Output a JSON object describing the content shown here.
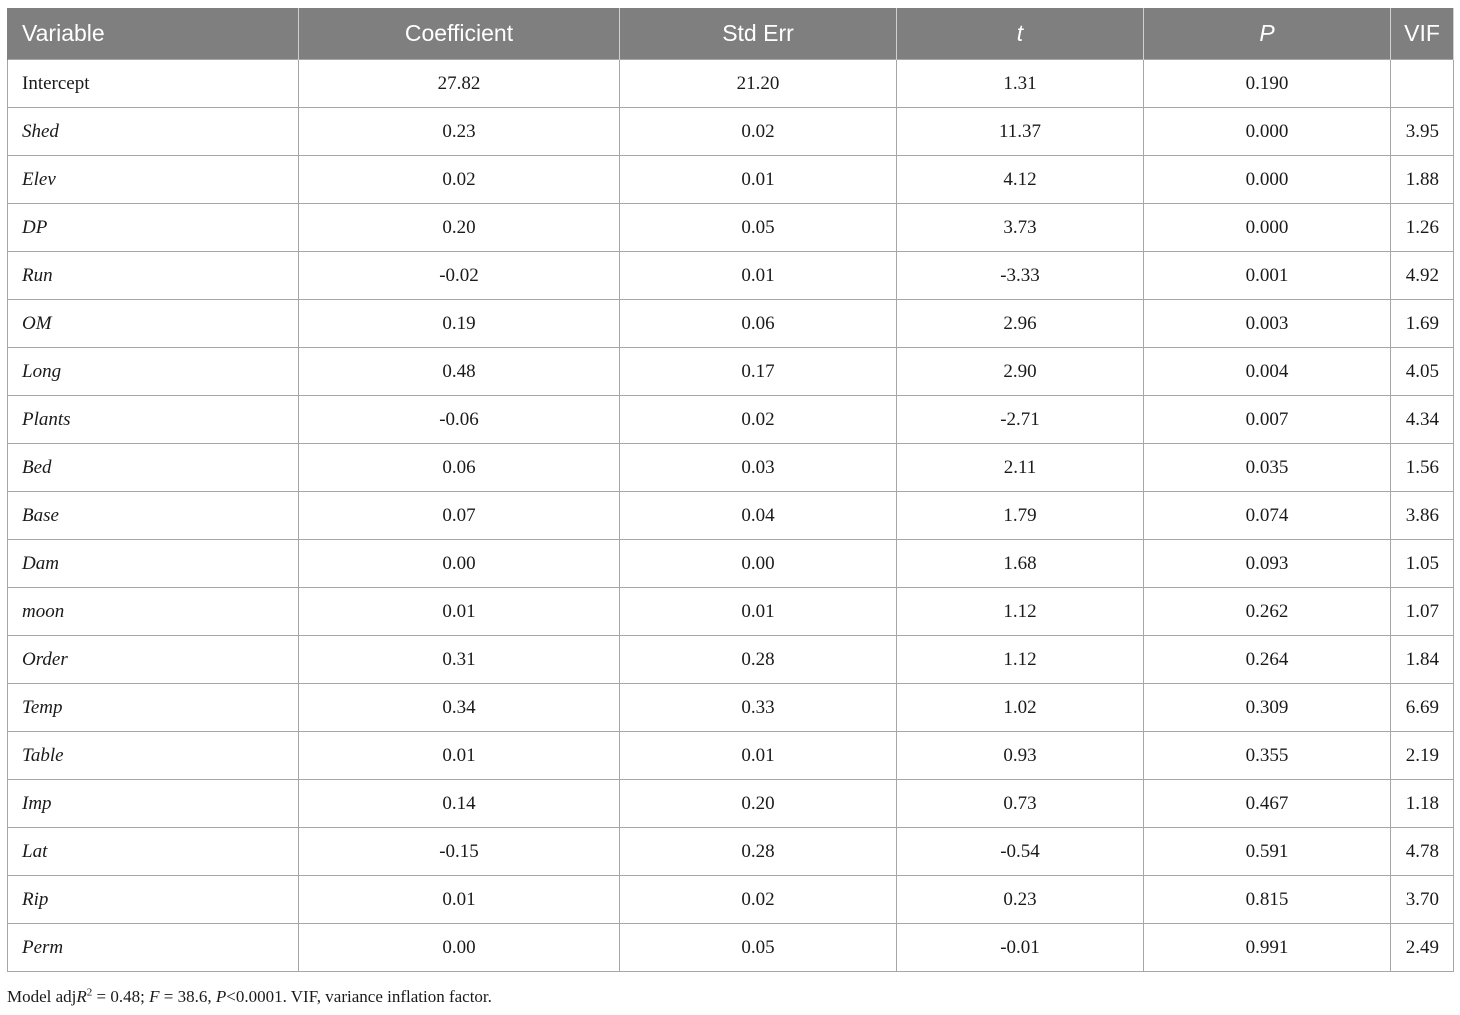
{
  "table": {
    "headers": [
      "Variable",
      "Coefficient",
      "Std Err",
      "t",
      "P",
      "VIF"
    ],
    "rows": [
      {
        "variable": "Intercept",
        "italic": false,
        "coefficient": "27.82",
        "std_err": "21.20",
        "t": "1.31",
        "p": "0.190",
        "vif": ""
      },
      {
        "variable": "Shed",
        "italic": true,
        "coefficient": "0.23",
        "std_err": "0.02",
        "t": "11.37",
        "p": "0.000",
        "vif": "3.95"
      },
      {
        "variable": "Elev",
        "italic": true,
        "coefficient": "0.02",
        "std_err": "0.01",
        "t": "4.12",
        "p": "0.000",
        "vif": "1.88"
      },
      {
        "variable": "DP",
        "italic": true,
        "coefficient": "0.20",
        "std_err": "0.05",
        "t": "3.73",
        "p": "0.000",
        "vif": "1.26"
      },
      {
        "variable": "Run",
        "italic": true,
        "coefficient": "-0.02",
        "std_err": "0.01",
        "t": "-3.33",
        "p": "0.001",
        "vif": "4.92"
      },
      {
        "variable": "OM",
        "italic": true,
        "coefficient": "0.19",
        "std_err": "0.06",
        "t": "2.96",
        "p": "0.003",
        "vif": "1.69"
      },
      {
        "variable": "Long",
        "italic": true,
        "coefficient": "0.48",
        "std_err": "0.17",
        "t": "2.90",
        "p": "0.004",
        "vif": "4.05"
      },
      {
        "variable": "Plants",
        "italic": true,
        "coefficient": "-0.06",
        "std_err": "0.02",
        "t": "-2.71",
        "p": "0.007",
        "vif": "4.34"
      },
      {
        "variable": "Bed",
        "italic": true,
        "coefficient": "0.06",
        "std_err": "0.03",
        "t": "2.11",
        "p": "0.035",
        "vif": "1.56"
      },
      {
        "variable": "Base",
        "italic": true,
        "coefficient": "0.07",
        "std_err": "0.04",
        "t": "1.79",
        "p": "0.074",
        "vif": "3.86"
      },
      {
        "variable": "Dam",
        "italic": true,
        "coefficient": "0.00",
        "std_err": "0.00",
        "t": "1.68",
        "p": "0.093",
        "vif": "1.05"
      },
      {
        "variable": "moon",
        "italic": true,
        "coefficient": "0.01",
        "std_err": "0.01",
        "t": "1.12",
        "p": "0.262",
        "vif": "1.07"
      },
      {
        "variable": "Order",
        "italic": true,
        "coefficient": "0.31",
        "std_err": "0.28",
        "t": "1.12",
        "p": "0.264",
        "vif": "1.84"
      },
      {
        "variable": "Temp",
        "italic": true,
        "coefficient": "0.34",
        "std_err": "0.33",
        "t": "1.02",
        "p": "0.309",
        "vif": "6.69"
      },
      {
        "variable": "Table",
        "italic": true,
        "coefficient": "0.01",
        "std_err": "0.01",
        "t": "0.93",
        "p": "0.355",
        "vif": "2.19"
      },
      {
        "variable": "Imp",
        "italic": true,
        "coefficient": "0.14",
        "std_err": "0.20",
        "t": "0.73",
        "p": "0.467",
        "vif": "1.18"
      },
      {
        "variable": "Lat",
        "italic": true,
        "coefficient": "-0.15",
        "std_err": "0.28",
        "t": "-0.54",
        "p": "0.591",
        "vif": "4.78"
      },
      {
        "variable": "Rip",
        "italic": true,
        "coefficient": "0.01",
        "std_err": "0.02",
        "t": "0.23",
        "p": "0.815",
        "vif": "3.70"
      },
      {
        "variable": "Perm",
        "italic": true,
        "coefficient": "0.00",
        "std_err": "0.05",
        "t": "-0.01",
        "p": "0.991",
        "vif": "2.49"
      }
    ]
  },
  "footnote": {
    "model_prefix": "Model adj",
    "r_symbol": "R",
    "r_exponent": "2",
    "r_value": " = 0.48; ",
    "f_symbol": "F",
    "f_value": " = 38.6, ",
    "p_symbol": "P",
    "p_value": "<0.0001. VIF, variance inflation factor."
  },
  "colors": {
    "header_bg": "#7f7f7f",
    "header_text": "#ffffff",
    "grid": "#a6a6a6"
  }
}
